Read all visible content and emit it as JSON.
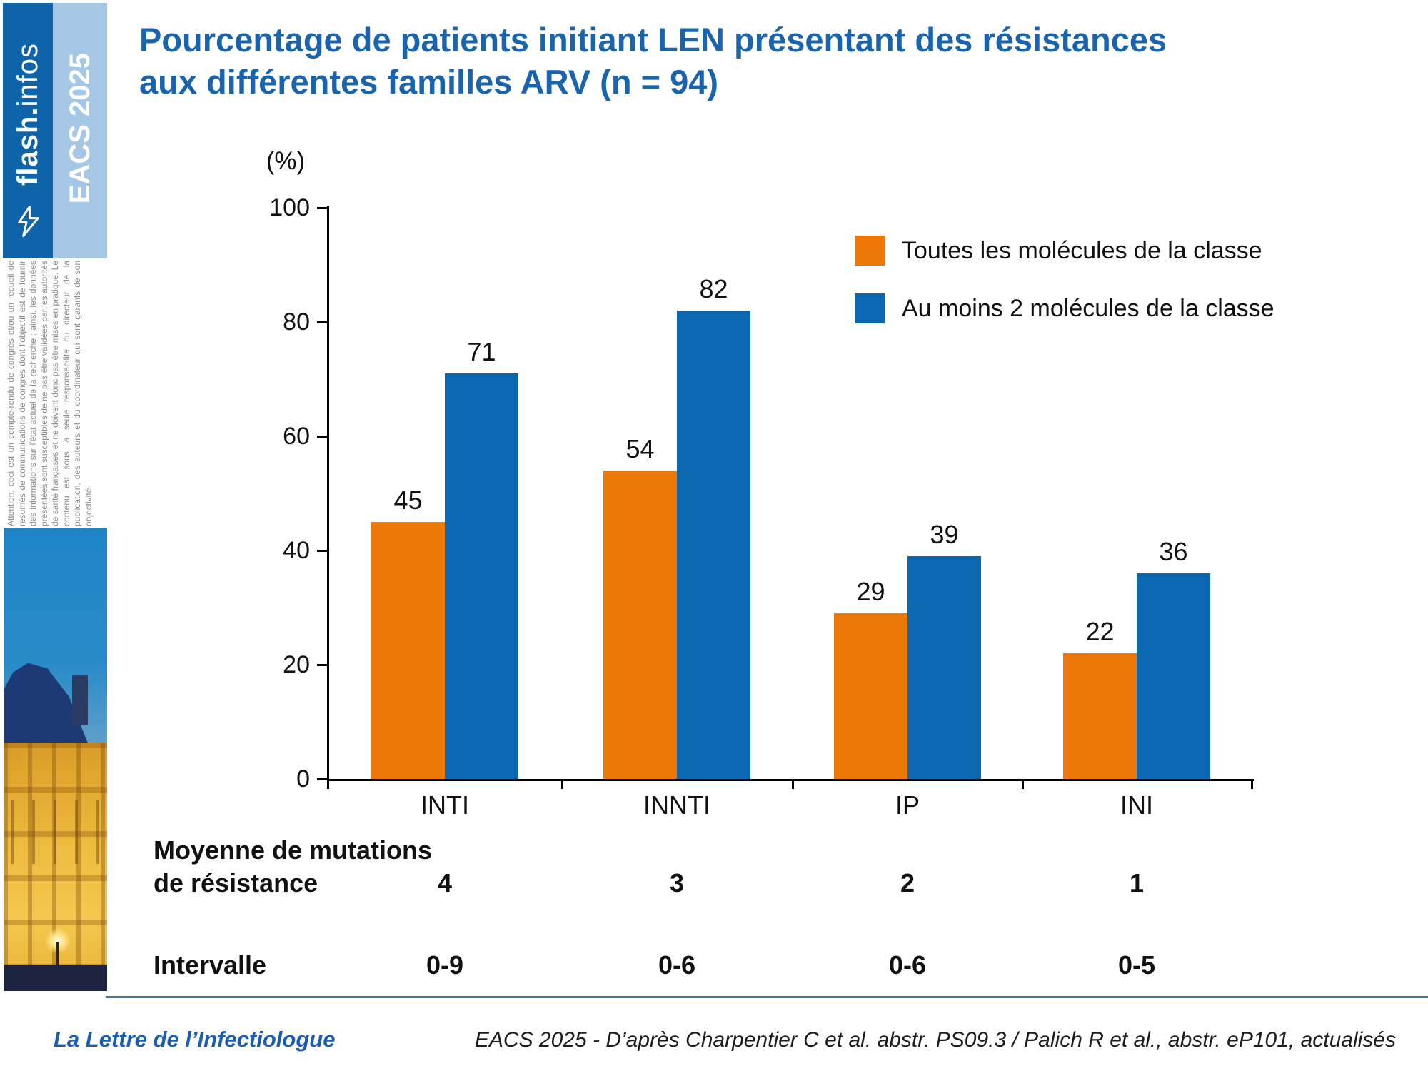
{
  "colors": {
    "orange": "#ED7807",
    "blue": "#0C67B1",
    "title_blue": "#1A64AD",
    "sidebar_dark": "#0E63A9",
    "sidebar_light": "#A5C7E6",
    "divider": "#3E6F96",
    "brand_blue": "#1A5CAD"
  },
  "sidebar": {
    "logo_bold": "flash.",
    "logo_light": "infos",
    "event_label": "EACS 2025",
    "disclaimer": "Attention, ceci est un compte-rendu de congrès et/ou un recueil de résumés de communications de congrès dont l'objectif est de fournir des informations sur l'état actuel de la recherche ; ainsi, les données présentées sont susceptibles de ne pas être validées par les autorités de santé françaises et ne doivent donc pas être mises en pratique. Le contenu est sous la seule responsabilité du directeur de la publication, des auteurs et du coordinateur qui sont garants de son objectivité."
  },
  "title_line1": "Pourcentage de patients initiant LEN présentant des résistances",
  "title_line2": "aux différentes familles ARV (n = 94)",
  "chart_data": {
    "type": "bar",
    "title": "Pourcentage de patients initiant LEN présentant des résistances aux différentes familles ARV (n = 94)",
    "unit_label": "(%)",
    "categories": [
      "INTI",
      "INNTI",
      "IP",
      "INI"
    ],
    "series": [
      {
        "name": "Toutes les molécules de la classe",
        "color": "#ED7807",
        "values": [
          45,
          54,
          29,
          22
        ]
      },
      {
        "name": "Au moins 2 molécules de la classe",
        "color": "#0C67B1",
        "values": [
          71,
          82,
          39,
          36
        ]
      }
    ],
    "ylim": [
      0,
      100
    ],
    "yticks": [
      0,
      20,
      40,
      60,
      80,
      100
    ],
    "grid": false,
    "legend_position": "top-right",
    "annotations": {
      "moyenne_label": "Moyenne de mutations de résistance",
      "moyenne_values": [
        "4",
        "3",
        "2",
        "1"
      ],
      "intervalle_label": "Intervalle",
      "intervalle_values": [
        "0-9",
        "0-6",
        "0-6",
        "0-5"
      ]
    }
  },
  "footer": {
    "brand": "La Lettre de l’Infectiologue",
    "source": "EACS 2025 - D’après Charpentier C et al. abstr. PS09.3 / Palich R et al., abstr. eP101, actualisés"
  }
}
